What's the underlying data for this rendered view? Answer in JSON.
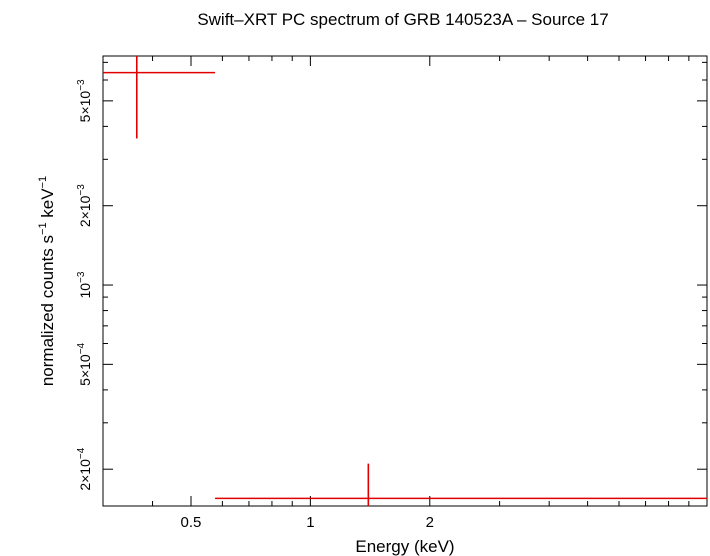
{
  "chart_data": {
    "type": "scatter",
    "title": "Swift–XRT PC spectrum of GRB 140523A – Source 17",
    "xlabel": "Energy (keV)",
    "ylabel_base": "normalized counts s",
    "ylabel_exp1": "−1",
    "ylabel_mid": " keV",
    "ylabel_exp2": "−1",
    "x_scale": "log",
    "y_scale": "log",
    "xlim": [
      0.3,
      10
    ],
    "ylim": [
      0.000145,
      0.0074
    ],
    "xticks": [
      {
        "value": 0.5,
        "label": "0.5"
      },
      {
        "value": 1,
        "label": "1"
      },
      {
        "value": 2,
        "label": "2"
      }
    ],
    "yticks": [
      {
        "value": 0.0002,
        "mant": "2×10",
        "exp": "−4"
      },
      {
        "value": 0.0005,
        "mant": "5×10",
        "exp": "−4"
      },
      {
        "value": 0.001,
        "mant": "10",
        "exp": "−3"
      },
      {
        "value": 0.002,
        "mant": "2×10",
        "exp": "−3"
      },
      {
        "value": 0.005,
        "mant": "5×10",
        "exp": "−3"
      }
    ],
    "series": [
      {
        "color": "#e00000",
        "points": [
          {
            "x": 0.365,
            "xlo": 0.3,
            "xhi": 0.575,
            "y": 0.0064,
            "ylo": 0.0036,
            "yhi": 0.0074
          },
          {
            "x": 1.4,
            "xlo": 0.575,
            "xhi": 10,
            "y": 0.000155,
            "ylo": 0.000145,
            "yhi": 0.00021
          }
        ]
      }
    ],
    "grid": false,
    "legend": "none"
  }
}
